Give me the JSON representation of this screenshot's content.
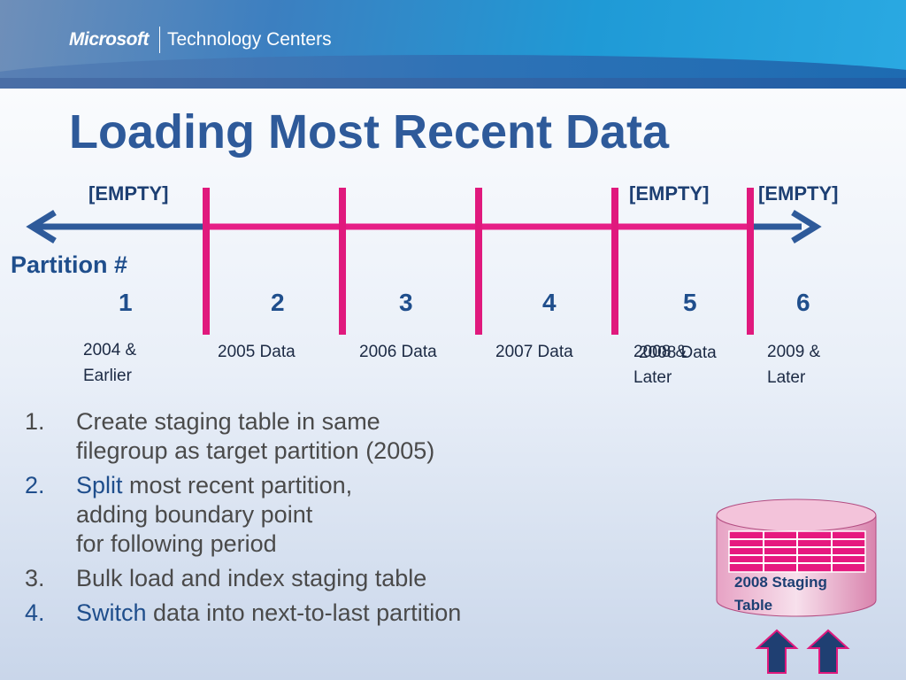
{
  "header": {
    "brand_microsoft": "Microsoft",
    "brand_suffix": "Technology Centers"
  },
  "slide": {
    "title": "Loading Most Recent Data"
  },
  "timeline": {
    "partition_label": "Partition #",
    "empty_labels": [
      "[EMPTY]",
      "[EMPTY]",
      "[EMPTY]"
    ],
    "partitions": [
      {
        "number": "1",
        "label_line1": "2004 &",
        "label_line2": "Earlier"
      },
      {
        "number": "2",
        "label_line1": "2005 Data"
      },
      {
        "number": "3",
        "label_line1": "2006 Data"
      },
      {
        "number": "4",
        "label_line1": "2007 Data"
      },
      {
        "number": "5",
        "label_line1": "2008 &",
        "label_line1_overlap": "2008 Data",
        "label_line2": "Later"
      },
      {
        "number": "6",
        "label_line1": "2009 &",
        "label_line2": "Later"
      }
    ],
    "colors": {
      "axis": "#2e5a9a",
      "boundary": "#e0197d",
      "segment": "#e61e86"
    }
  },
  "steps": [
    {
      "num": "1.",
      "line1": "Create staging table in same",
      "line2": "filegroup as target partition (2005)"
    },
    {
      "num": "2.",
      "keyword": "Split",
      "line1_rest": " most recent partition,",
      "line2": "adding boundary point",
      "line3": "for following period"
    },
    {
      "num": "3.",
      "line1": "Bulk load and index staging table"
    },
    {
      "num": "4.",
      "keyword": "Switch",
      "line1_rest": " data into next-to-last partition"
    }
  ],
  "staging": {
    "caption_line1": "2008 Staging",
    "caption_line2": "Table",
    "icon": "database-cylinder-icon"
  }
}
